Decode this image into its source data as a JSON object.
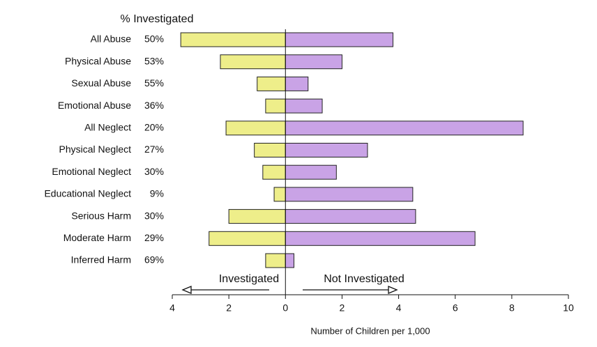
{
  "chart_data": {
    "type": "diverging_bar",
    "annotation_title": "% Investigated",
    "categories": [
      "All Abuse",
      "Physical Abuse",
      "Sexual Abuse",
      "Emotional Abuse",
      "All Neglect",
      "Physical Neglect",
      "Emotional Neglect",
      "Educational Neglect",
      "Serious Harm",
      "Moderate Harm",
      "Inferred Harm"
    ],
    "annotations": [
      "50%",
      "53%",
      "55%",
      "36%",
      "20%",
      "27%",
      "30%",
      "9%",
      "30%",
      "29%",
      "69%"
    ],
    "series": [
      {
        "name": "Investigated",
        "color": "#eeee8a",
        "values": [
          -3.7,
          -2.3,
          -1.0,
          -0.7,
          -2.1,
          -1.1,
          -0.8,
          -0.4,
          -2.0,
          -2.7,
          -0.7
        ]
      },
      {
        "name": "Not Investigated",
        "color": "#c9a3e6",
        "values": [
          3.8,
          2.0,
          0.8,
          1.3,
          8.4,
          2.9,
          1.8,
          4.5,
          4.6,
          6.7,
          0.3
        ]
      }
    ],
    "xlim": [
      -4,
      10
    ],
    "xticks": [
      {
        "value": -4,
        "label": "4"
      },
      {
        "value": -2,
        "label": "2"
      },
      0,
      2,
      4,
      6,
      8,
      10
    ],
    "xlabel": "Number of Children per 1,000"
  }
}
